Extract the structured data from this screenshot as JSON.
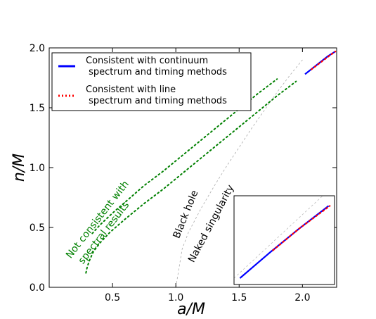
{
  "chart_data": {
    "type": "line",
    "xlabel": "a/M",
    "ylabel": "n/M",
    "xlim": [
      0.0,
      2.27
    ],
    "ylim": [
      0.0,
      2.0
    ],
    "xticks": [
      "0.5",
      "1.0",
      "1.5",
      "2.0"
    ],
    "xtick_values": [
      0.5,
      1.0,
      1.5,
      2.0
    ],
    "yticks": [
      "0.0",
      "0.5",
      "1.0",
      "1.5",
      "2.0"
    ],
    "ytick_values": [
      0.0,
      0.5,
      1.0,
      1.5,
      2.0
    ],
    "grid": false,
    "legend_position": "top-left",
    "series": [
      {
        "name": "Consistent with continuum\n spectrum and timing methods",
        "color": "#0000ff",
        "style": "solid",
        "x": [
          2.02,
          2.08,
          2.14,
          2.2,
          2.26
        ],
        "y": [
          1.78,
          1.83,
          1.88,
          1.93,
          1.97
        ]
      },
      {
        "name": "Consistent with line\n spectrum and timing methods",
        "color": "#ff0000",
        "style": "dotted",
        "x": [
          2.07,
          2.12,
          2.17,
          2.22,
          2.26
        ],
        "y": [
          1.82,
          1.86,
          1.9,
          1.94,
          1.97
        ]
      }
    ],
    "extra_curves": [
      {
        "role": "not-consistent-lower",
        "color": "#008000",
        "style": "dotted",
        "x": [
          0.29,
          0.3,
          0.32,
          0.35,
          0.4,
          0.48,
          0.6,
          0.75,
          0.9,
          1.05,
          1.2,
          1.35,
          1.5,
          1.65,
          1.8,
          1.95
        ],
        "y": [
          0.12,
          0.17,
          0.23,
          0.3,
          0.37,
          0.46,
          0.57,
          0.7,
          0.82,
          0.95,
          1.08,
          1.21,
          1.34,
          1.47,
          1.6,
          1.72
        ]
      },
      {
        "role": "not-consistent-upper",
        "color": "#008000",
        "style": "dotted",
        "x": [
          0.34,
          0.4,
          0.5,
          0.62,
          0.75,
          0.9,
          1.05,
          1.2,
          1.35,
          1.5,
          1.65,
          1.8
        ],
        "y": [
          0.45,
          0.52,
          0.62,
          0.73,
          0.85,
          0.97,
          1.1,
          1.23,
          1.36,
          1.49,
          1.62,
          1.74
        ]
      },
      {
        "role": "black-hole-boundary",
        "color": "#aaaaaa",
        "style": "dashed",
        "x": [
          1.0,
          1.05,
          1.1,
          1.2,
          1.3,
          1.4,
          1.5,
          1.6,
          1.7,
          1.8,
          1.9,
          2.0
        ],
        "y": [
          0.0,
          0.32,
          0.46,
          0.66,
          0.84,
          1.01,
          1.17,
          1.33,
          1.48,
          1.63,
          1.77,
          1.9
        ]
      }
    ],
    "annotations": [
      {
        "text": "Not consistent with",
        "color": "#008000",
        "x": 0.4,
        "y": 0.55,
        "rotation": -52
      },
      {
        "text": "spectral results",
        "color": "#008000",
        "x": 0.45,
        "y": 0.44,
        "rotation": -52
      },
      {
        "text": "Black hole",
        "color": "#000000",
        "x": 1.1,
        "y": 0.6,
        "rotation": -68
      },
      {
        "text": "Naked singularity",
        "color": "#000000",
        "x": 1.3,
        "y": 0.52,
        "rotation": -62
      }
    ],
    "inset": {
      "series": [
        {
          "color": "#0000ff",
          "style": "solid",
          "x": [
            1.5,
            1.75,
            2.0,
            2.25
          ],
          "y": [
            1.4,
            1.6,
            1.79,
            1.97
          ]
        },
        {
          "color": "#ff0000",
          "style": "dotted",
          "x": [
            1.78,
            2.0,
            2.26
          ],
          "y": [
            1.62,
            1.79,
            1.97
          ]
        }
      ],
      "reference": {
        "color": "#bbbbbb",
        "style": "dashed",
        "x": [
          1.45,
          2.2
        ],
        "y": [
          1.4,
          2.05
        ]
      },
      "xlim": [
        1.45,
        2.3
      ],
      "ylim": [
        1.35,
        2.05
      ]
    }
  }
}
